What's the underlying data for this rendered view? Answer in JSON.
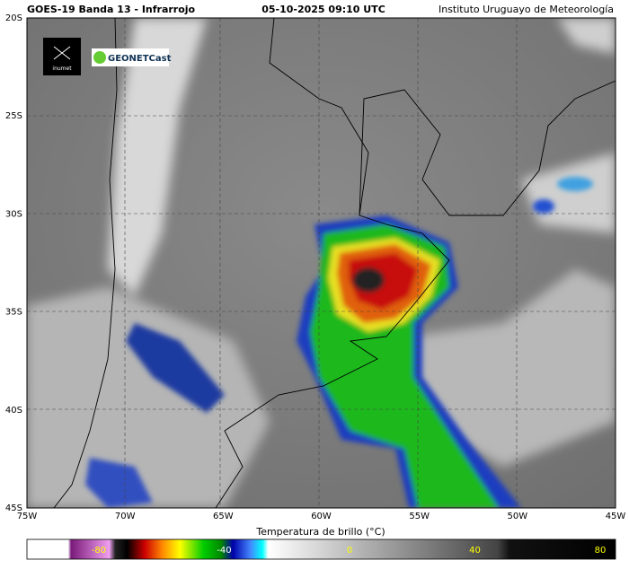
{
  "header": {
    "title": "GOES-19 Banda 13 - Infrarrojo",
    "datetime": "05-10-2025 09:10 UTC",
    "institution": "Instituto Uruguayo de Meteorología"
  },
  "logos": {
    "inumet": "inumet",
    "geonetcast": "GEONETCast"
  },
  "map": {
    "lat_labels": [
      "20S",
      "25S",
      "30S",
      "35S",
      "40S",
      "45S"
    ],
    "lon_labels": [
      "75W",
      "70W",
      "65W",
      "60W",
      "55W",
      "50W",
      "45W"
    ]
  },
  "colorbar": {
    "label": "Temperatura de brillo (°C)",
    "ticks": [
      "-80",
      "-40",
      "0",
      "40",
      "80"
    ]
  }
}
